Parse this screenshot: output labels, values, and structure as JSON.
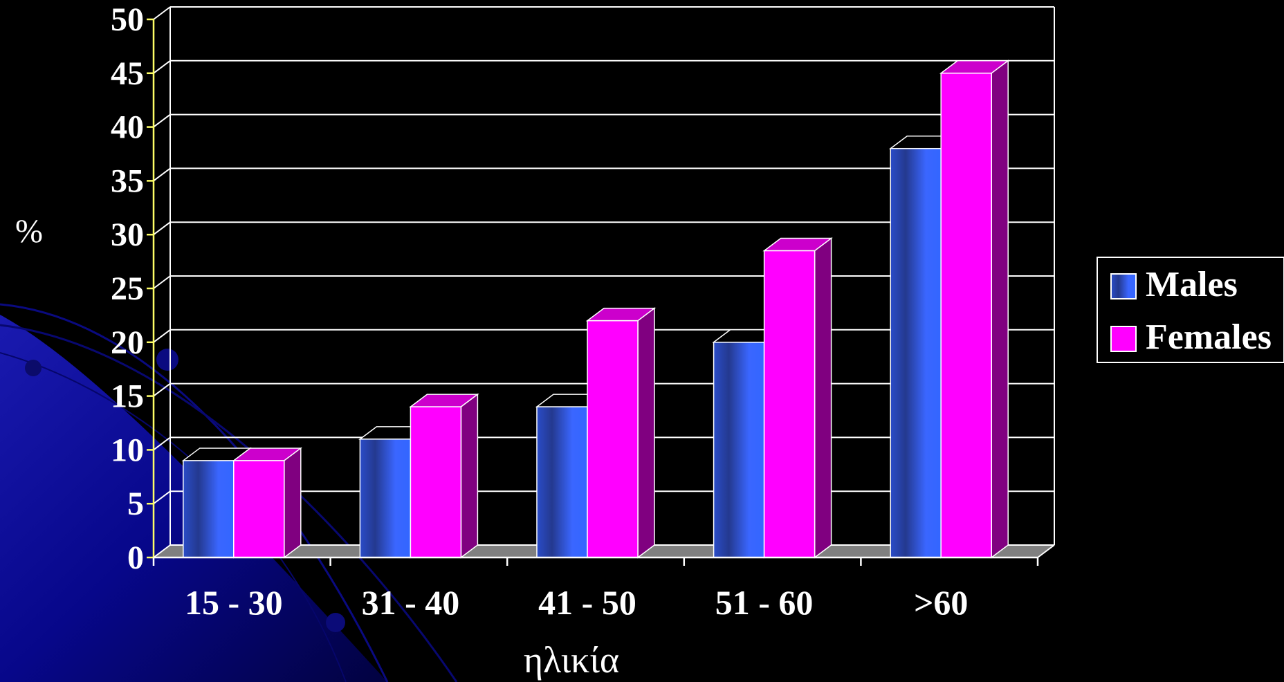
{
  "chart_data": {
    "type": "bar",
    "title": "",
    "xlabel": "ηλικία",
    "ylabel": "%",
    "categories": [
      "15 - 30",
      "31 - 40",
      "41 - 50",
      "51 - 60",
      ">60"
    ],
    "series": [
      {
        "name": "Males",
        "values": [
          9,
          11,
          14,
          20,
          38
        ],
        "color": "#3366FF",
        "side_color": "#2244AA"
      },
      {
        "name": "Females",
        "values": [
          9,
          14,
          22,
          28.5,
          45
        ],
        "color": "#FF00FF",
        "side_color": "#800080"
      }
    ],
    "ylim": [
      0,
      50
    ],
    "yticks": [
      "0",
      "5",
      "10",
      "15",
      "20",
      "25",
      "30",
      "35",
      "40",
      "45",
      "50"
    ],
    "grid": true,
    "legend_position": "right",
    "colors": {
      "background": "#000000",
      "grid": "#FFFFFF",
      "y_axis": "#FFFF66",
      "floor": "#808080",
      "text": "#FFFFFF",
      "decoration": "#0A0A8C"
    }
  }
}
